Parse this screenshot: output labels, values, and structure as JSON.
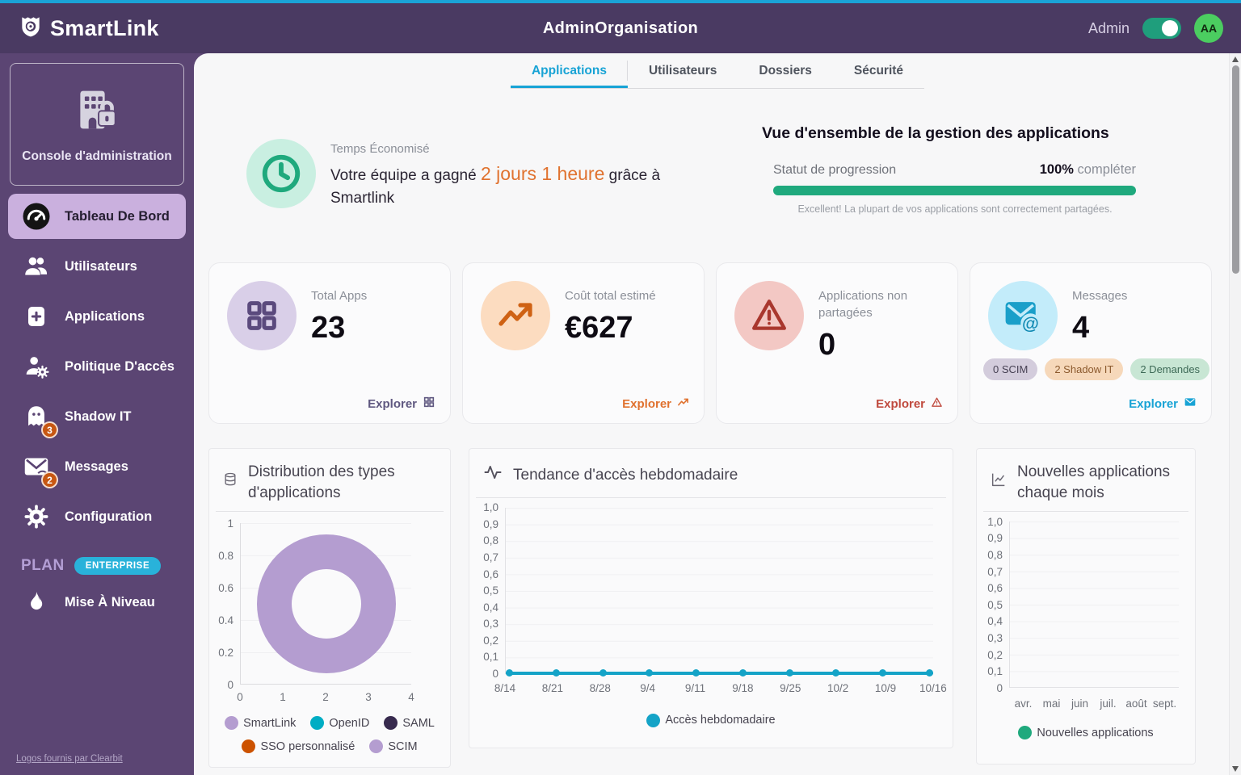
{
  "brand": {
    "name": "SmartLink"
  },
  "header": {
    "title": "AdminOrganisation",
    "user_label": "Admin",
    "avatar_initials": "AA",
    "toggle_state": "on"
  },
  "colors": {
    "accent_blue": "#1aa3d7",
    "header_purple": "#4a3a62",
    "sidebar_purple": "#5b4573",
    "active_item": "#cab0de",
    "badge_orange": "#c75712",
    "enterprise_badge": "#29b2da",
    "teal": "#1fa97d",
    "highlight_orange": "#e0722f",
    "tab_active": "#18a3d5",
    "donut_purple": "#b49dd0",
    "line_cyan": "#14a3c7",
    "legend_green": "#1fa97d"
  },
  "sidebar": {
    "console_label": "Console d'administration",
    "items": [
      {
        "label": "Tableau De Bord",
        "active": true
      },
      {
        "label": "Utilisateurs"
      },
      {
        "label": "Applications"
      },
      {
        "label": "Politique D'accès"
      },
      {
        "label": "Shadow IT",
        "badge": "3"
      },
      {
        "label": "Messages",
        "badge": "2"
      },
      {
        "label": "Configuration"
      }
    ],
    "plan_label": "PLAN",
    "plan_badge": "ENTERPRISE",
    "upgrade_label": "Mise À Niveau",
    "footer_link": "Logos fournis par Clearbit"
  },
  "tabs": [
    {
      "label": "Applications",
      "active": true
    },
    {
      "label": "Utilisateurs"
    },
    {
      "label": "Dossiers"
    },
    {
      "label": "Sécurité"
    }
  ],
  "time_saved": {
    "label": "Temps Économisé",
    "prefix": "Votre équipe a gagné",
    "highlight": "2 jours 1 heure",
    "suffix": "grâce à Smartlink"
  },
  "overview": {
    "title": "Vue d'ensemble de la gestion des applications",
    "progress_label": "Statut de progression",
    "progress_value": "100%",
    "progress_suffix": "compléter",
    "progress_percent": 100,
    "caption": "Excellent! La plupart de vos applications sont correctement partagées."
  },
  "cards": [
    {
      "label": "Total Apps",
      "value": "23",
      "explore_label": "Explorer"
    },
    {
      "label": "Coût total estimé",
      "value": "€627",
      "explore_label": "Explorer"
    },
    {
      "label": "Applications non partagées",
      "value": "0",
      "explore_label": "Explorer"
    },
    {
      "label": "Messages",
      "value": "4",
      "explore_label": "Explorer",
      "pills": [
        {
          "label": "0 SCIM"
        },
        {
          "label": "2 Shadow IT"
        },
        {
          "label": "2 Demandes"
        }
      ]
    }
  ],
  "chart_data": [
    {
      "type": "pie",
      "title": "Distribution des types d'applications",
      "labels": [
        "SmartLink",
        "OpenID",
        "SAML",
        "SSO personnalisé",
        "SCIM"
      ],
      "values": [
        100,
        0,
        0,
        0,
        0
      ],
      "colors": [
        "#b49dd0",
        "#00adc4",
        "#372a4e",
        "#cc5200",
        "#b49dd0"
      ],
      "note": "donut rendered as a single full SmartLink slice",
      "axis": {
        "x_ticks": [
          "0",
          "1",
          "2",
          "3",
          "4"
        ],
        "y_ticks": [
          "1",
          "0.8",
          "0.6",
          "0.4",
          "0.2",
          "0"
        ]
      },
      "legend_position": "bottom"
    },
    {
      "type": "line",
      "title": "Tendance d'accès hebdomadaire",
      "x": [
        "8/14",
        "8/21",
        "8/28",
        "9/4",
        "9/11",
        "9/18",
        "9/25",
        "10/2",
        "10/9",
        "10/16"
      ],
      "series": [
        {
          "name": "Accès hebdomadaire",
          "values": [
            0,
            0,
            0,
            0,
            0,
            0,
            0,
            0,
            0,
            0
          ],
          "color": "#14a3c7"
        }
      ],
      "ylim": [
        0,
        1
      ],
      "y_ticks": [
        "1,0",
        "0,9",
        "0,8",
        "0,7",
        "0,6",
        "0,5",
        "0,4",
        "0,3",
        "0,2",
        "0,1",
        "0"
      ],
      "grid": true,
      "legend_position": "bottom"
    },
    {
      "type": "bar",
      "title": "Nouvelles applications chaque mois",
      "categories": [
        "avr.",
        "mai",
        "juin",
        "juil.",
        "août",
        "sept."
      ],
      "series": [
        {
          "name": "Nouvelles applications",
          "values": [
            0,
            0,
            0,
            0,
            0,
            0
          ],
          "color": "#1fa97d"
        }
      ],
      "ylim": [
        0,
        1
      ],
      "y_ticks": [
        "1,0",
        "0,9",
        "0,8",
        "0,7",
        "0,6",
        "0,5",
        "0,4",
        "0,3",
        "0,2",
        "0,1",
        "0"
      ],
      "grid": true,
      "legend_position": "bottom"
    }
  ]
}
